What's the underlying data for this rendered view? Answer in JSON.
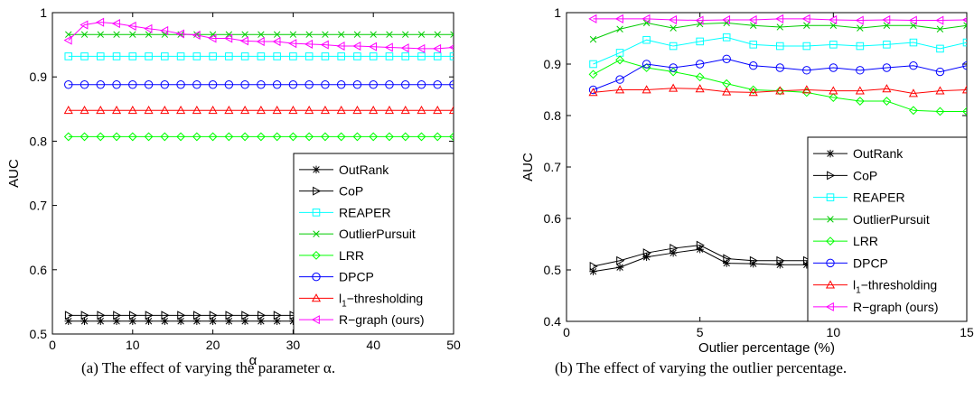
{
  "captions": {
    "a": "(a)  The effect of varying the parameter α.",
    "b": "(b)  The effect of varying the outlier percentage."
  },
  "chart_data": [
    {
      "type": "line",
      "id": "a",
      "xlabel": "α",
      "ylabel": "AUC",
      "xlim": [
        0,
        50
      ],
      "ylim": [
        0.5,
        1
      ],
      "xticks": [
        0,
        10,
        20,
        30,
        40,
        50
      ],
      "yticks": [
        0.5,
        0.6,
        0.7,
        0.8,
        0.9,
        1
      ],
      "ytick_labels": [
        "0.5",
        "0.6",
        "0.7",
        "0.8",
        "0.9",
        "1"
      ],
      "grid": false,
      "legend": "bottom-right",
      "x": [
        2,
        4,
        6,
        8,
        10,
        12,
        14,
        16,
        18,
        20,
        22,
        24,
        26,
        28,
        30,
        32,
        34,
        36,
        38,
        40,
        42,
        44,
        46,
        48,
        50
      ],
      "series": [
        {
          "name": "OutRank",
          "color": "#000000",
          "marker": "star",
          "values": [
            0.52,
            0.52,
            0.52,
            0.52,
            0.52,
            0.52,
            0.52,
            0.52,
            0.52,
            0.52,
            0.52,
            0.52,
            0.52,
            0.52,
            0.52,
            0.52,
            0.52,
            0.52,
            0.52,
            0.52,
            0.52,
            0.52,
            0.52,
            0.52,
            0.52
          ]
        },
        {
          "name": "CoP",
          "color": "#000000",
          "marker": "triangle-right",
          "values": [
            0.529,
            0.529,
            0.529,
            0.529,
            0.529,
            0.529,
            0.529,
            0.529,
            0.529,
            0.529,
            0.529,
            0.529,
            0.529,
            0.529,
            0.529,
            0.529,
            0.529,
            0.529,
            0.529,
            0.529,
            0.529,
            0.529,
            0.529,
            0.529,
            0.529
          ]
        },
        {
          "name": "REAPER",
          "color": "#00ffff",
          "marker": "square",
          "values": [
            0.932,
            0.932,
            0.932,
            0.932,
            0.932,
            0.932,
            0.932,
            0.932,
            0.932,
            0.932,
            0.932,
            0.932,
            0.932,
            0.932,
            0.932,
            0.932,
            0.932,
            0.932,
            0.932,
            0.932,
            0.932,
            0.932,
            0.932,
            0.932,
            0.932
          ]
        },
        {
          "name": "OutlierPursuit",
          "color": "#00cc00",
          "marker": "x",
          "values": [
            0.966,
            0.966,
            0.966,
            0.966,
            0.966,
            0.966,
            0.966,
            0.966,
            0.966,
            0.966,
            0.966,
            0.966,
            0.966,
            0.966,
            0.966,
            0.966,
            0.966,
            0.966,
            0.966,
            0.966,
            0.966,
            0.966,
            0.966,
            0.966,
            0.966
          ]
        },
        {
          "name": "LRR",
          "color": "#00ff00",
          "marker": "diamond",
          "values": [
            0.807,
            0.807,
            0.807,
            0.807,
            0.807,
            0.807,
            0.807,
            0.807,
            0.807,
            0.807,
            0.807,
            0.807,
            0.807,
            0.807,
            0.807,
            0.807,
            0.807,
            0.807,
            0.807,
            0.807,
            0.807,
            0.807,
            0.807,
            0.807,
            0.807
          ]
        },
        {
          "name": "DPCP",
          "color": "#0000ff",
          "marker": "circle",
          "values": [
            0.888,
            0.888,
            0.888,
            0.888,
            0.888,
            0.888,
            0.888,
            0.888,
            0.888,
            0.888,
            0.888,
            0.888,
            0.888,
            0.888,
            0.888,
            0.888,
            0.888,
            0.888,
            0.888,
            0.888,
            0.888,
            0.888,
            0.888,
            0.888,
            0.888
          ]
        },
        {
          "name": "l1-thresholding",
          "label_main": "l",
          "label_sub": "1",
          "label_rest": "−thresholding",
          "color": "#ff0000",
          "marker": "triangle-up",
          "values": [
            0.848,
            0.848,
            0.848,
            0.848,
            0.848,
            0.848,
            0.848,
            0.848,
            0.848,
            0.848,
            0.848,
            0.848,
            0.848,
            0.848,
            0.848,
            0.848,
            0.848,
            0.848,
            0.848,
            0.848,
            0.848,
            0.848,
            0.848,
            0.848,
            0.848
          ]
        },
        {
          "name": "R−graph (ours)",
          "color": "#ff00ff",
          "marker": "triangle-left",
          "values": [
            0.957,
            0.981,
            0.985,
            0.983,
            0.979,
            0.975,
            0.972,
            0.967,
            0.965,
            0.96,
            0.96,
            0.956,
            0.955,
            0.955,
            0.952,
            0.951,
            0.95,
            0.948,
            0.948,
            0.947,
            0.946,
            0.945,
            0.944,
            0.944,
            0.946
          ]
        }
      ]
    },
    {
      "type": "line",
      "id": "b",
      "xlabel": "Outlier percentage (%)",
      "ylabel": "AUC",
      "xlim": [
        0,
        15
      ],
      "ylim": [
        0.4,
        1
      ],
      "xticks": [
        0,
        5,
        10,
        15
      ],
      "yticks": [
        0.4,
        0.5,
        0.6,
        0.7,
        0.8,
        0.9,
        1
      ],
      "ytick_labels": [
        "0.4",
        "0.5",
        "0.6",
        "0.7",
        "0.8",
        "0.9",
        "1"
      ],
      "grid": false,
      "legend": "bottom-right",
      "x": [
        1,
        2,
        3,
        4,
        5,
        6,
        7,
        8,
        9,
        10,
        11,
        12,
        13,
        14,
        15
      ],
      "series": [
        {
          "name": "OutRank",
          "color": "#000000",
          "marker": "star",
          "values": [
            0.497,
            0.505,
            0.525,
            0.533,
            0.54,
            0.513,
            0.512,
            0.51,
            0.51,
            0.512,
            0.512,
            0.515,
            0.518,
            0.518,
            0.525
          ]
        },
        {
          "name": "CoP",
          "color": "#000000",
          "marker": "triangle-right",
          "values": [
            0.507,
            0.518,
            0.533,
            0.542,
            0.548,
            0.522,
            0.518,
            0.518,
            0.518,
            0.518,
            0.518,
            0.518,
            0.52,
            0.52,
            0.522
          ]
        },
        {
          "name": "REAPER",
          "color": "#00ffff",
          "marker": "square",
          "values": [
            0.9,
            0.922,
            0.947,
            0.935,
            0.944,
            0.952,
            0.938,
            0.935,
            0.935,
            0.938,
            0.935,
            0.938,
            0.942,
            0.93,
            0.942
          ]
        },
        {
          "name": "OutlierPursuit",
          "color": "#00cc00",
          "marker": "x",
          "values": [
            0.948,
            0.968,
            0.98,
            0.97,
            0.978,
            0.98,
            0.975,
            0.972,
            0.975,
            0.975,
            0.97,
            0.975,
            0.975,
            0.968,
            0.975
          ]
        },
        {
          "name": "LRR",
          "color": "#00ff00",
          "marker": "diamond",
          "values": [
            0.88,
            0.908,
            0.893,
            0.885,
            0.875,
            0.862,
            0.85,
            0.848,
            0.845,
            0.835,
            0.828,
            0.828,
            0.81,
            0.808,
            0.808
          ]
        },
        {
          "name": "DPCP",
          "color": "#0000ff",
          "marker": "circle",
          "values": [
            0.85,
            0.87,
            0.9,
            0.893,
            0.9,
            0.91,
            0.897,
            0.893,
            0.888,
            0.893,
            0.888,
            0.893,
            0.897,
            0.885,
            0.897
          ]
        },
        {
          "name": "l1-thresholding",
          "label_main": "l",
          "label_sub": "1",
          "label_rest": "−thresholding",
          "color": "#ff0000",
          "marker": "triangle-up",
          "values": [
            0.845,
            0.85,
            0.85,
            0.853,
            0.852,
            0.846,
            0.845,
            0.848,
            0.85,
            0.848,
            0.848,
            0.852,
            0.843,
            0.848,
            0.85
          ]
        },
        {
          "name": "R−graph (ours)",
          "color": "#ff00ff",
          "marker": "triangle-left",
          "values": [
            0.988,
            0.988,
            0.988,
            0.986,
            0.985,
            0.986,
            0.986,
            0.988,
            0.988,
            0.986,
            0.985,
            0.986,
            0.985,
            0.985,
            0.986
          ]
        }
      ]
    }
  ]
}
